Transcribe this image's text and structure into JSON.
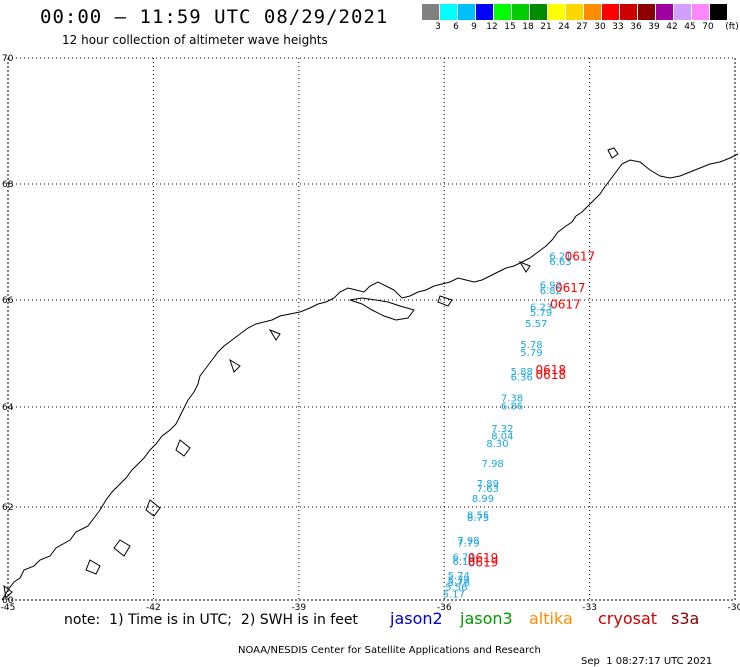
{
  "title": "00:00 – 11:59 UTC 08/29/2021",
  "subtitle": "12 hour collection of altimeter wave heights",
  "colorscale": {
    "unit": "(ft)",
    "swatches": [
      {
        "color": "#808080",
        "label": "3"
      },
      {
        "color": "#00ffff",
        "label": "6"
      },
      {
        "color": "#00bfff",
        "label": "9"
      },
      {
        "color": "#0000ff",
        "label": "12"
      },
      {
        "color": "#00ff00",
        "label": "15"
      },
      {
        "color": "#00cc00",
        "label": "18"
      },
      {
        "color": "#008c00",
        "label": "21"
      },
      {
        "color": "#ffff00",
        "label": "24"
      },
      {
        "color": "#ffd700",
        "label": "27"
      },
      {
        "color": "#ff8c00",
        "label": "30"
      },
      {
        "color": "#ff0000",
        "label": "33"
      },
      {
        "color": "#cc0000",
        "label": "36"
      },
      {
        "color": "#8b0000",
        "label": "39"
      },
      {
        "color": "#a000a0",
        "label": "42"
      },
      {
        "color": "#d0a0ff",
        "label": "45"
      },
      {
        "color": "#ff88ff",
        "label": "70"
      },
      {
        "color": "#000000",
        "label": ""
      }
    ]
  },
  "map": {
    "lon_range": [
      -45,
      -30
    ],
    "lat_range": [
      60,
      70
    ],
    "lon_ticks": [
      "-45",
      "-42",
      "-39",
      "-36",
      "-33",
      "-30"
    ],
    "lat_ticks": [
      "60",
      "62",
      "64",
      "66",
      "68",
      "70"
    ],
    "grid": true
  },
  "observations": [
    {
      "lon": -33.6,
      "lat": 66.7,
      "v": "6.21"
    },
    {
      "lon": -33.6,
      "lat": 66.6,
      "v": "6.63"
    },
    {
      "lon": -33.8,
      "lat": 66.2,
      "v": "6.92"
    },
    {
      "lon": -33.8,
      "lat": 66.1,
      "v": "6.82"
    },
    {
      "lon": -34.0,
      "lat": 65.8,
      "v": "6.23"
    },
    {
      "lon": -34.0,
      "lat": 65.7,
      "v": "5.79"
    },
    {
      "lon": -34.1,
      "lat": 65.5,
      "v": "5.57"
    },
    {
      "lon": -34.2,
      "lat": 65.1,
      "v": "5.78"
    },
    {
      "lon": -34.2,
      "lat": 64.95,
      "v": "5.79"
    },
    {
      "lon": -34.4,
      "lat": 64.6,
      "v": "5.88"
    },
    {
      "lon": -34.4,
      "lat": 64.5,
      "v": "6.36"
    },
    {
      "lon": -34.6,
      "lat": 64.1,
      "v": "7.38"
    },
    {
      "lon": -34.6,
      "lat": 63.95,
      "v": "6.86"
    },
    {
      "lon": -34.8,
      "lat": 63.5,
      "v": "7.32"
    },
    {
      "lon": -34.8,
      "lat": 63.35,
      "v": "8.04"
    },
    {
      "lon": -34.9,
      "lat": 63.2,
      "v": "8.30"
    },
    {
      "lon": -35.0,
      "lat": 62.8,
      "v": "7.98"
    },
    {
      "lon": -35.1,
      "lat": 62.4,
      "v": "7.89"
    },
    {
      "lon": -35.1,
      "lat": 62.3,
      "v": "7.63"
    },
    {
      "lon": -35.2,
      "lat": 62.1,
      "v": "8.99"
    },
    {
      "lon": -35.3,
      "lat": 61.75,
      "v": "8.55"
    },
    {
      "lon": -35.3,
      "lat": 61.7,
      "v": "8.75"
    },
    {
      "lon": -35.5,
      "lat": 61.2,
      "v": "7.98"
    },
    {
      "lon": -35.5,
      "lat": 61.15,
      "v": "7.79"
    },
    {
      "lon": -35.6,
      "lat": 60.85,
      "v": "6.74"
    },
    {
      "lon": -35.6,
      "lat": 60.75,
      "v": "6.16"
    },
    {
      "lon": -35.7,
      "lat": 60.45,
      "v": "5.74"
    },
    {
      "lon": -35.7,
      "lat": 60.35,
      "v": "5.79"
    },
    {
      "lon": -35.7,
      "lat": 60.3,
      "v": "5.76"
    },
    {
      "lon": -35.75,
      "lat": 60.2,
      "v": "5.56"
    },
    {
      "lon": -35.8,
      "lat": 60.05,
      "v": "5.17"
    }
  ],
  "pass_labels": [
    {
      "lon": -33.2,
      "lat": 66.68,
      "t": "0617"
    },
    {
      "lon": -33.4,
      "lat": 66.14,
      "t": "0617"
    },
    {
      "lon": -33.5,
      "lat": 65.84,
      "t": "0617"
    },
    {
      "lon": -33.8,
      "lat": 64.62,
      "t": "0618"
    },
    {
      "lon": -33.8,
      "lat": 64.52,
      "t": "0618"
    },
    {
      "lon": -35.2,
      "lat": 60.82,
      "t": "0619"
    },
    {
      "lon": -35.2,
      "lat": 60.72,
      "t": "0619"
    }
  ],
  "note": "note:  1) Time is in UTC;  2) SWH is in feet",
  "satellites": [
    {
      "name": "jason2",
      "color": "#0000cc"
    },
    {
      "name": "jason3",
      "color": "#009900"
    },
    {
      "name": "altika",
      "color": "#ff8c00"
    },
    {
      "name": "cryosat",
      "color": "#cc0000"
    },
    {
      "name": "s3a",
      "color": "#8b0000"
    }
  ],
  "credit_left": "NOAA/NESDIS Center for Satellite Applications and Research",
  "credit_right": "Sep  1 08:27:17 UTC 2021",
  "colors": {
    "obs": "#1aa7e0",
    "pass": "#ff0000",
    "coast": "#000000"
  }
}
